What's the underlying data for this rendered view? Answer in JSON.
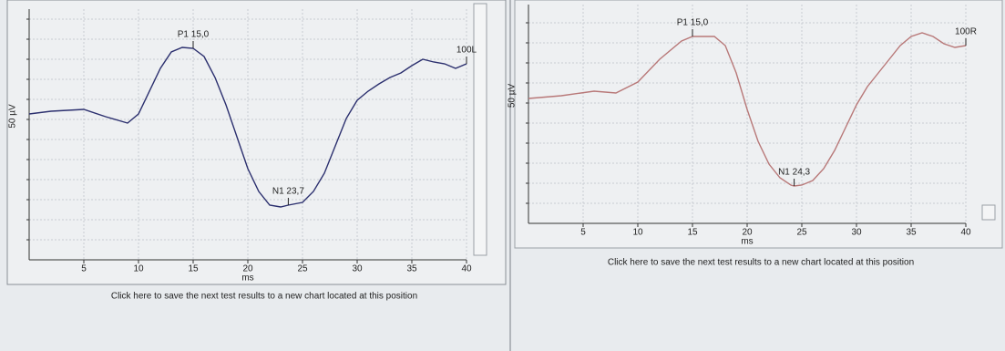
{
  "chart_data": [
    {
      "type": "line",
      "x_label": "ms",
      "y_label": "50 µV",
      "grid": true,
      "xlim": [
        0,
        40
      ],
      "xticks": [
        5,
        10,
        15,
        20,
        25,
        30,
        35,
        40
      ],
      "ylim": [
        -160,
        115
      ],
      "color": "#2b2f6e",
      "x": [
        0,
        2,
        5,
        7,
        9,
        10,
        12,
        13,
        14,
        15,
        16,
        17,
        18,
        19,
        20,
        21,
        22,
        23,
        23.7,
        25,
        26,
        27,
        28,
        29,
        30,
        31,
        32,
        33,
        34,
        35,
        36,
        37,
        38,
        39,
        40
      ],
      "values": [
        0,
        3,
        5,
        -3,
        -10,
        0,
        50,
        68,
        73,
        72,
        63,
        40,
        10,
        -25,
        -60,
        -85,
        -100,
        -102,
        -100,
        -97,
        -85,
        -65,
        -35,
        -5,
        15,
        25,
        33,
        40,
        45,
        53,
        60,
        57,
        55,
        50,
        55
      ],
      "annotations": [
        {
          "text": "P1 15,0",
          "x": 15,
          "y": 72
        },
        {
          "text": "N1 23,7",
          "x": 23.7,
          "y": -100
        },
        {
          "text": "100L",
          "x": 40,
          "y": 55
        }
      ],
      "footer": "Click here to save the next test results to a new chart located at this position"
    },
    {
      "type": "line",
      "x_label": "ms",
      "y_label": "50 µV",
      "grid": true,
      "xlim": [
        0,
        40
      ],
      "xticks": [
        5,
        10,
        15,
        20,
        25,
        30,
        35,
        40
      ],
      "ylim": [
        -137,
        103
      ],
      "color": "#b87878",
      "x": [
        0,
        3,
        6,
        8,
        10,
        12,
        14,
        15,
        17,
        18,
        19,
        20,
        21,
        22,
        23,
        24,
        24.3,
        25,
        26,
        27,
        28,
        29,
        30,
        31,
        32,
        33,
        34,
        35,
        36,
        37,
        38,
        39,
        40
      ],
      "values": [
        0,
        3,
        8,
        6,
        18,
        43,
        63,
        68,
        68,
        58,
        28,
        -12,
        -47,
        -72,
        -87,
        -95,
        -96,
        -95,
        -90,
        -77,
        -57,
        -32,
        -7,
        13,
        28,
        43,
        58,
        68,
        72,
        68,
        60,
        56,
        58
      ],
      "annotations": [
        {
          "text": "P1 15,0",
          "x": 15,
          "y": 68
        },
        {
          "text": "N1 24,3",
          "x": 24.3,
          "y": -96
        },
        {
          "text": "100R",
          "x": 40,
          "y": 58
        }
      ],
      "footer": "Click here to save the next test results to a new chart located at this position"
    }
  ]
}
